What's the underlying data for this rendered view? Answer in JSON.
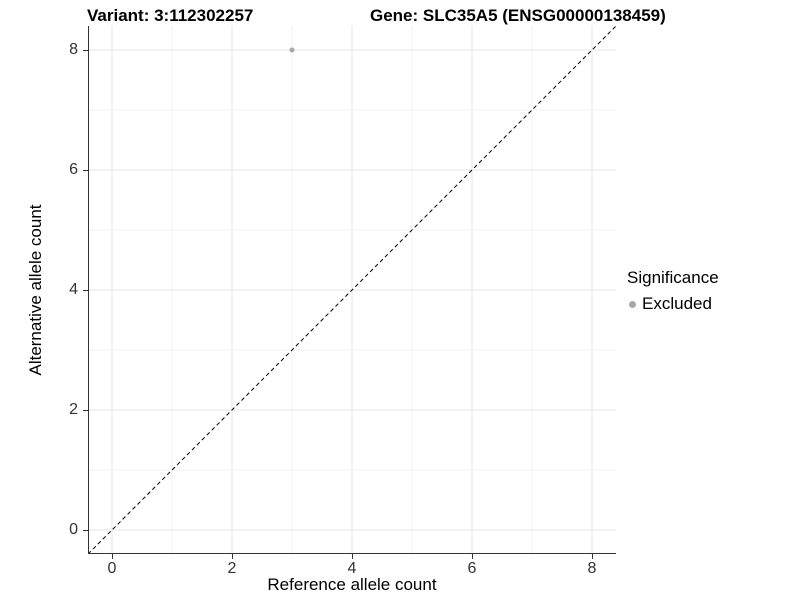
{
  "header": {
    "variant_title": "Variant: 3:112302257",
    "gene_title": "Gene: SLC35A5 (ENSG00000138459)"
  },
  "chart_data": {
    "type": "scatter",
    "xlabel": "Reference allele count",
    "ylabel": "Alternative allele count",
    "xlim": [
      -0.4,
      8.4
    ],
    "ylim": [
      -0.4,
      8.4
    ],
    "x_major_ticks": [
      0,
      2,
      4,
      6,
      8
    ],
    "y_major_ticks": [
      0,
      2,
      4,
      6,
      8
    ],
    "x_minor_gridlines": [
      1,
      3,
      5,
      7
    ],
    "y_minor_gridlines": [
      1,
      3,
      5,
      7
    ],
    "grid": "major+minor",
    "points": [
      {
        "x": 3,
        "y": 8,
        "series": "Excluded"
      }
    ],
    "reference_line": {
      "type": "identity",
      "style": "dashed",
      "x1": -0.4,
      "y1": -0.4,
      "x2": 8.4,
      "y2": 8.4
    },
    "legend": {
      "title": "Significance",
      "position": "right",
      "items": [
        {
          "label": "Excluded",
          "color": "#a8a8a8",
          "marker": "circle"
        }
      ]
    },
    "colors": {
      "point": "#a8a8a8",
      "major_grid": "#e4e4e4",
      "minor_grid": "#f1f1f1",
      "axis_line": "#333333",
      "reference_line": "#000000",
      "tick_label": "#333333",
      "background": "#ffffff"
    },
    "point_radius_px": 2.5
  }
}
